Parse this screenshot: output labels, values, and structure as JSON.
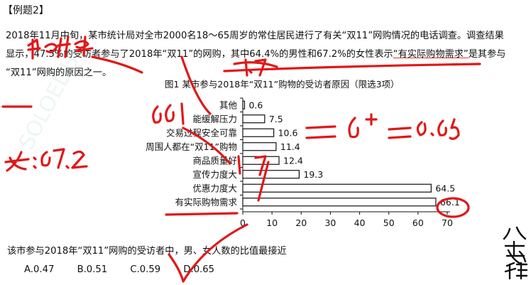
{
  "example_tag": "【例题2】",
  "paragraph": {
    "line1": "2018年11月中旬，某市统计局对全市2000名18～65周岁的常住居民进行了有关“双11”网购情况的电话调查。调查结果",
    "line2_a": "显示，47.5%的受访者参与了2018年“双11”的网购，其中64.4%的男性和67.2%的女性表示",
    "line2_b": "“有实际购物需求”",
    "line2_c": "是其参与",
    "line3": "“双11”网购的原因之一。"
  },
  "chart_title": "图1  某市参与2018年“双11”购物的受访者原因（限选3项）",
  "chart_data": {
    "type": "bar",
    "orientation": "horizontal",
    "title": "图1  某市参与2018年“双11”购物的受访者原因（限选3项）",
    "categories": [
      "其他",
      "能缓解压力",
      "交易过程安全可靠",
      "周围人都在“双11”购物",
      "商品质量好",
      "宣传力度大",
      "优惠力度大",
      "有实际购物需求"
    ],
    "values": [
      0.6,
      7.5,
      10.6,
      11.4,
      12.4,
      19.3,
      64.5,
      66.1
    ],
    "value_labels": [
      "0.6",
      "7.5",
      "10.6",
      "11.4",
      "12.4",
      "19.3",
      "64.5",
      "66.1"
    ],
    "xlim": [
      0,
      70
    ],
    "xticks": [
      0,
      10,
      20,
      30,
      40,
      50,
      60,
      70
    ],
    "grid": false,
    "bar_color": "#ffffff",
    "bar_edge_color": "#111111"
  },
  "question": "该市参与2018年“双11”网购的受访者中，男、女人数的比值最接近",
  "options": [
    {
      "label": "A.0.47"
    },
    {
      "label": "B.0.51"
    },
    {
      "label": "C.0.59"
    },
    {
      "label": "D.0.65"
    }
  ],
  "annotations": {
    "male": "男: 64.4",
    "female": "女: 67.2",
    "ratio": "1.7",
    "eq": "= 6⁺ = 0.65",
    "note_a": "66.1",
    "note_b": "1.7"
  },
  "watermark": "SOLOEDUC",
  "logo_text": "八考思维",
  "ink_color": "#e01818"
}
